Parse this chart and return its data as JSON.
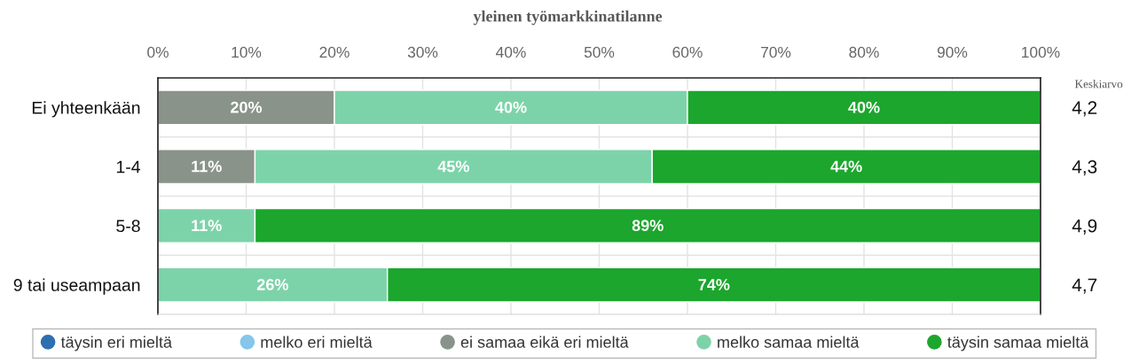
{
  "chart_data": {
    "type": "bar",
    "orientation": "horizontal",
    "stacked": true,
    "title": "yleinen työmarkkinatilanne",
    "categories": [
      "Ei yhteenkään",
      "1-4",
      "5-8",
      "9 tai useampaan"
    ],
    "series": [
      {
        "name": "täysin eri mieltä",
        "color": "#2e6fb0",
        "values": [
          null,
          null,
          null,
          null
        ]
      },
      {
        "name": "melko eri mieltä",
        "color": "#85c6ea",
        "values": [
          null,
          null,
          null,
          null
        ]
      },
      {
        "name": "ei samaa eikä eri mieltä",
        "color": "#8a9389",
        "values": [
          20,
          11,
          null,
          null
        ],
        "value_labels": [
          "20%",
          "11%",
          null,
          null
        ]
      },
      {
        "name": "melko samaa mieltä",
        "color": "#7dd3a9",
        "values": [
          40,
          45,
          11,
          26
        ],
        "value_labels": [
          "40%",
          "45%",
          "11%",
          "26%"
        ]
      },
      {
        "name": "täysin samaa mieltä",
        "color": "#1ca62d",
        "values": [
          40,
          44,
          89,
          74
        ],
        "value_labels": [
          "40%",
          "44%",
          "89%",
          "74%"
        ]
      }
    ],
    "xlim": [
      0,
      100
    ],
    "xticks": [
      {
        "value": 0,
        "label": "0%"
      },
      {
        "value": 10,
        "label": "10%"
      },
      {
        "value": 20,
        "label": "20%"
      },
      {
        "value": 30,
        "label": "30%"
      },
      {
        "value": 40,
        "label": "40%"
      },
      {
        "value": 50,
        "label": "50%"
      },
      {
        "value": 60,
        "label": "60%"
      },
      {
        "value": 70,
        "label": "70%"
      },
      {
        "value": 80,
        "label": "80%"
      },
      {
        "value": 90,
        "label": "90%"
      },
      {
        "value": 100,
        "label": "100%"
      }
    ],
    "annotations": [
      "Keskiarvo",
      "4,2",
      "4,3",
      "4,9",
      "4,7"
    ],
    "grid": true,
    "legend": "bottom"
  }
}
